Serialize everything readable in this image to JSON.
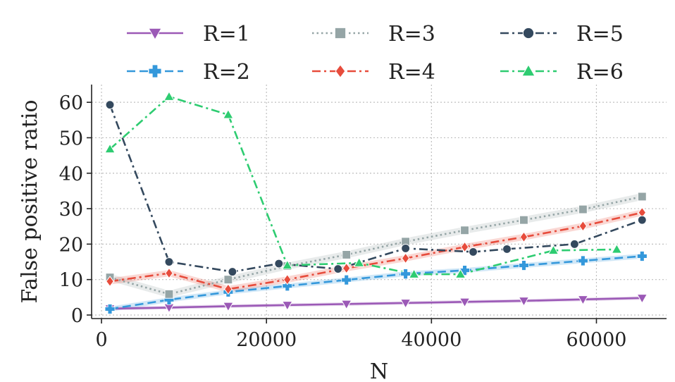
{
  "chart_data": {
    "type": "line",
    "xlabel": "N",
    "ylabel": "False positive ratio",
    "xlim": [
      -1200,
      68500
    ],
    "ylim": [
      -1,
      65
    ],
    "xticks": [
      0,
      20000,
      40000,
      60000
    ],
    "yticks": [
      0,
      10,
      20,
      30,
      40,
      50,
      60
    ],
    "xtick_labels": [
      "0",
      "20000",
      "40000",
      "60000"
    ],
    "ytick_labels": [
      "0",
      "10",
      "20",
      "30",
      "40",
      "50",
      "60"
    ],
    "grid": true,
    "legend_position": "top",
    "series": [
      {
        "name": "R=1",
        "color": "#9b59b6",
        "dash": "solid",
        "marker": "triangle-down",
        "band": 0.5,
        "x": [
          1024,
          8192,
          15360,
          22528,
          29696,
          36864,
          44032,
          51200,
          58368,
          65536
        ],
        "y": [
          1.8,
          2.1,
          2.5,
          2.8,
          3.1,
          3.4,
          3.7,
          4.0,
          4.4,
          4.8
        ]
      },
      {
        "name": "R=2",
        "color": "#3498db",
        "dash": "dashed",
        "marker": "plus",
        "band": 0.7,
        "x": [
          1024,
          8192,
          15360,
          22528,
          29696,
          36864,
          44032,
          51200,
          58368,
          65536
        ],
        "y": [
          1.7,
          4.3,
          6.5,
          8.2,
          9.9,
          11.6,
          12.6,
          14.0,
          15.3,
          16.6
        ]
      },
      {
        "name": "R=3",
        "color": "#95a5a6",
        "dash": "dotted",
        "marker": "square",
        "band": 1.0,
        "x": [
          1024,
          8192,
          15360,
          22528,
          29696,
          36864,
          44032,
          51200,
          58368,
          65536
        ],
        "y": [
          10.6,
          5.9,
          10.0,
          13.8,
          17.0,
          20.7,
          23.9,
          26.8,
          29.8,
          33.4
        ]
      },
      {
        "name": "R=4",
        "color": "#e74c3c",
        "dash": "dashdot",
        "marker": "diamond",
        "band": 0.9,
        "x": [
          1024,
          8192,
          15360,
          22528,
          29696,
          36864,
          44032,
          51200,
          58368,
          65536
        ],
        "y": [
          9.5,
          11.8,
          7.3,
          10.0,
          13.2,
          16.0,
          19.2,
          22.0,
          25.1,
          28.9
        ]
      },
      {
        "name": "R=5",
        "color": "#34495e",
        "dash": "dashdot",
        "marker": "circle",
        "band": 0,
        "x": [
          1024,
          8192,
          15872,
          21504,
          28672,
          36864,
          45056,
          49152,
          57344,
          65536
        ],
        "y": [
          59.3,
          15.0,
          12.2,
          14.5,
          13.0,
          18.8,
          17.8,
          18.6,
          20.0,
          26.8
        ]
      },
      {
        "name": "R=6",
        "color": "#2ecc71",
        "dash": "dashdot",
        "marker": "triangle-up",
        "band": 0,
        "x": [
          1024,
          8192,
          15360,
          22528,
          31232,
          37888,
          43520,
          54784,
          62464
        ],
        "y": [
          46.8,
          61.6,
          56.5,
          14.0,
          14.7,
          11.5,
          11.5,
          18.2,
          18.5
        ]
      }
    ]
  }
}
